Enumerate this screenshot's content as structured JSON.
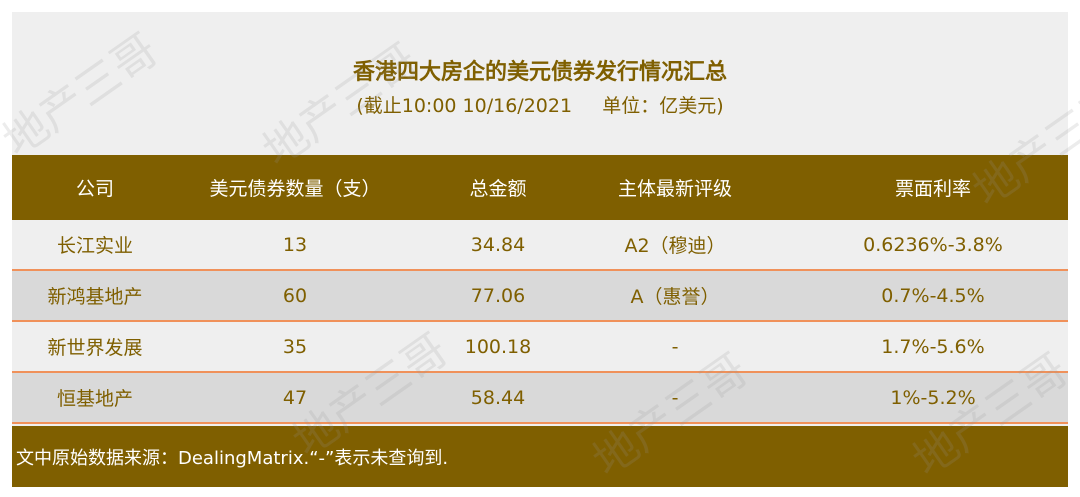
{
  "title": "香港四大房企的美元债券发行情况汇总",
  "subtitle": "(截止10:00 10/16/2021     单位：亿美元)",
  "headers": [
    "公司",
    "美元债券数量（支）",
    "总金额",
    "主体最新评级",
    "票面利率"
  ],
  "rows": [
    [
      "长江实业",
      "13",
      "34.84",
      "A2（穆迪）",
      "0.6236%-3.8%"
    ],
    [
      "新鸿基地产",
      "60",
      "77.06",
      "A（惠誉）",
      "0.7%-4.5%"
    ],
    [
      "新世界发展",
      "35",
      "100.18",
      "-",
      "1.7%-5.6%"
    ],
    [
      "恒基地产",
      "47",
      "58.44",
      "-",
      "1%-5.2%"
    ]
  ],
  "footer": "文中原始数据来源：DealingMatrix.“-”表示未查询到.",
  "watermark": "地产三哥",
  "colors": {
    "brand": "#7f5f00",
    "separator": "#f0915a",
    "alt_row": "#d9d9d9"
  }
}
